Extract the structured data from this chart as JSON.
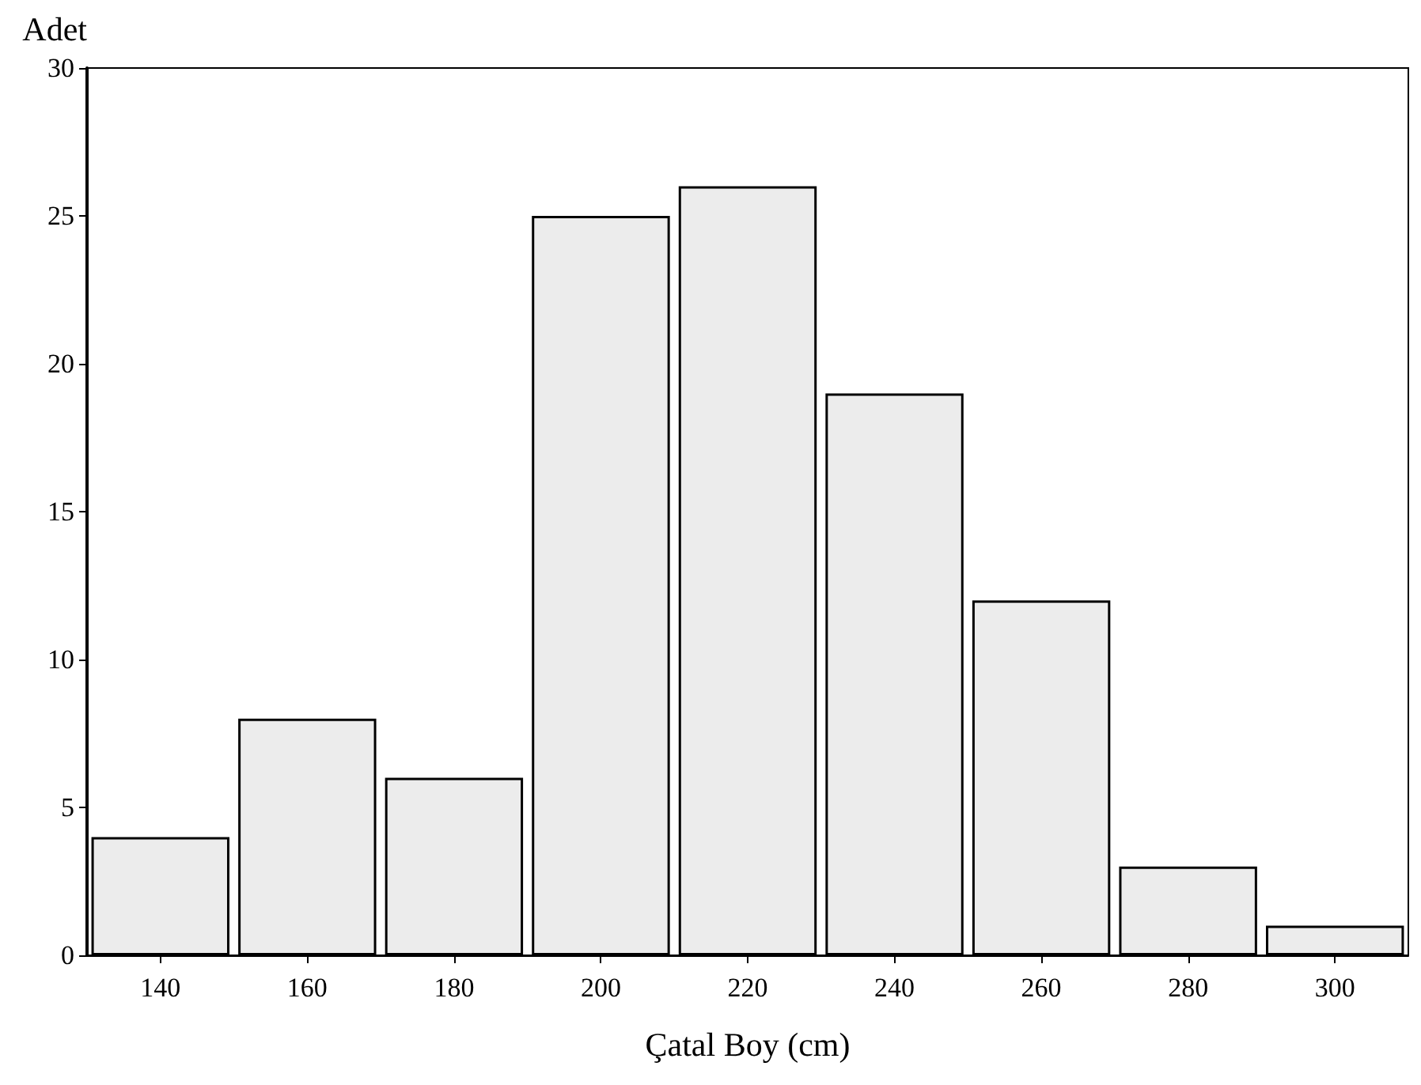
{
  "chart_data": {
    "type": "bar",
    "xlabel": "Çatal Boy (cm)",
    "ylabel": "Adet",
    "categories": [
      "140",
      "160",
      "180",
      "200",
      "220",
      "240",
      "260",
      "280",
      "300"
    ],
    "values": [
      4,
      8,
      6,
      25,
      26,
      19,
      12,
      3,
      1
    ],
    "color": "#ececec",
    "ylim": [
      0,
      30
    ],
    "yticks": [
      0,
      5,
      10,
      15,
      20,
      25,
      30
    ],
    "grid": false
  }
}
